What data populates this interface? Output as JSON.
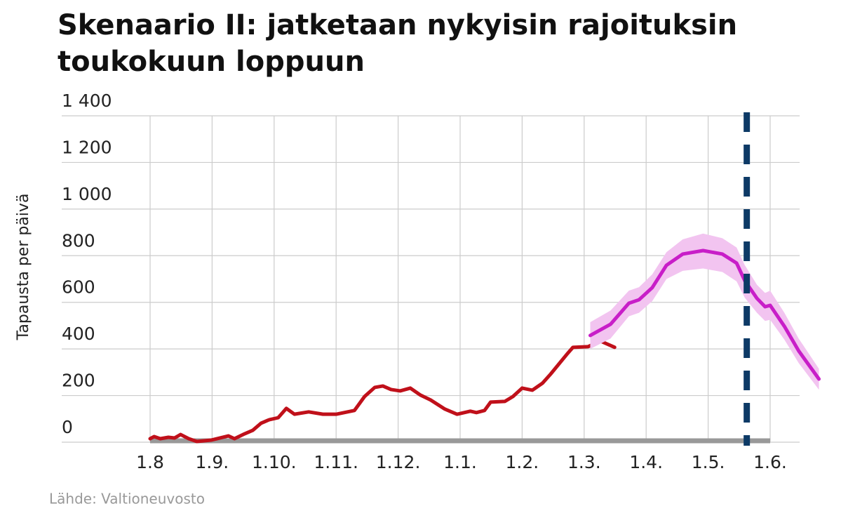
{
  "chart_data": {
    "type": "line",
    "title": [
      "Skenaario II: jatketaan nykyisin rajoituksin",
      "toukokuun loppuun"
    ],
    "y_label": "Tapausta per päivä",
    "source": "Lähde: Valtioneuvosto",
    "ylim": [
      0,
      1400
    ],
    "yticks": [
      0,
      200,
      400,
      600,
      800,
      {
        "value": 1000,
        "label": "1 000"
      },
      {
        "value": 1200,
        "label": "1 200"
      },
      {
        "value": 1400,
        "label": "1 400"
      }
    ],
    "xticks": [
      "1.8",
      "1.9.",
      "1.10.",
      "1.11.",
      "1.12.",
      "1.1.",
      "1.2.",
      "1.3.",
      "1.4.",
      "1.5.",
      "1.6."
    ],
    "grid": true,
    "series": [
      {
        "color": "#c0101a",
        "x": [
          "1.8.",
          "3.8.",
          "6.8.",
          "10.8.",
          "13.8.",
          "16.8.",
          "20.8.",
          "24.8.",
          "31.8.",
          "9.9.",
          "12.9.",
          "17.9.",
          "21.9.",
          "25.9.",
          "29.9.",
          "3.10.",
          "7.10.",
          "11.10.",
          "18.10.",
          "25.10.",
          "1.11.",
          "10.11.",
          "15.11.",
          "20.11.",
          "24.11.",
          "28.11.",
          "2.12.",
          "7.12.",
          "12.12.",
          "17.12.",
          "24.12.",
          "30.12.",
          "6.1.",
          "9.1.",
          "13.1.",
          "16.1.",
          "23.1.",
          "27.1.",
          "1.2.",
          "6.2.",
          "11.2.",
          "15.2.",
          "23.2.",
          "26.2.",
          "3.3.",
          "9.3.",
          "16.3."
        ],
        "values": [
          15,
          24,
          15,
          21,
          18,
          33,
          15,
          3,
          9,
          27,
          15,
          36,
          51,
          81,
          96,
          105,
          145,
          120,
          130,
          120,
          120,
          136,
          196,
          235,
          241,
          226,
          220,
          232,
          202,
          181,
          142,
          120,
          133,
          127,
          136,
          172,
          175,
          196,
          232,
          223,
          253,
          292,
          377,
          407,
          410,
          434,
          407
        ]
      },
      {
        "color": "#c81ec8",
        "band_color": "#f2c4f0",
        "x": [
          "4.3.",
          "14.3.",
          "23.3.",
          "28.3.",
          "4.4.",
          "11.4.",
          "19.4.",
          "29.4.",
          "8.5.",
          "15.5.",
          "19.5.",
          "25.5.",
          "29.5.",
          "1.6.",
          "8.6.",
          "15.6.",
          "25.6."
        ],
        "values": [
          458,
          506,
          596,
          611,
          663,
          759,
          807,
          822,
          807,
          768,
          693,
          617,
          581,
          587,
          497,
          392,
          271
        ],
        "lower": [
          400,
          445,
          540,
          555,
          605,
          700,
          735,
          745,
          730,
          690,
          620,
          555,
          520,
          525,
          440,
          340,
          225
        ],
        "upper": [
          515,
          565,
          650,
          665,
          720,
          815,
          870,
          895,
          875,
          835,
          760,
          675,
          640,
          650,
          555,
          445,
          315
        ]
      }
    ],
    "vline": {
      "x": "20.5.",
      "color": "#0d3a66"
    }
  }
}
